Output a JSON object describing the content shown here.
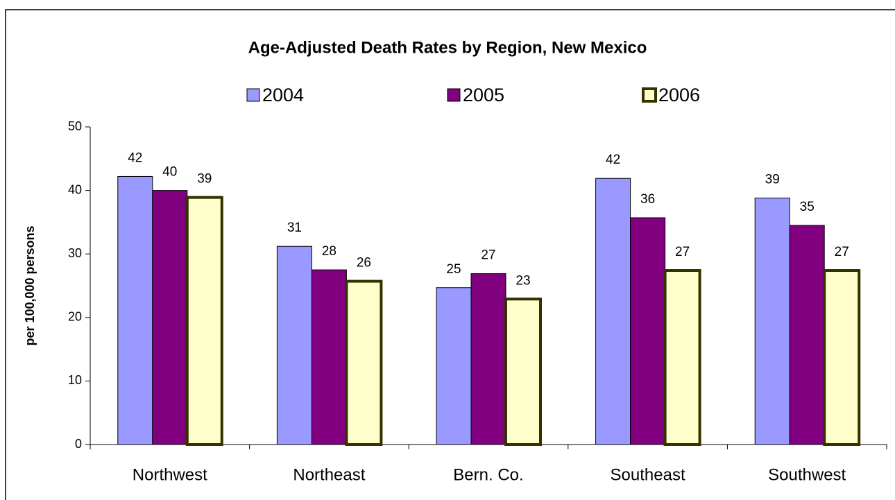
{
  "chart_data": {
    "type": "bar",
    "title": "Age-Adjusted Death Rates by Region, New Mexico",
    "y_label": "per 100,000 persons",
    "categories": [
      "Northwest",
      "Northeast",
      "Bern. Co.",
      "Southeast",
      "Southwest"
    ],
    "series": [
      {
        "name": "2004",
        "color": "#9999ff",
        "values": [
          42.2,
          31.2,
          24.7,
          41.9,
          38.8
        ],
        "value_labels": [
          "42",
          "31",
          "25",
          "42",
          "39"
        ]
      },
      {
        "name": "2005",
        "color": "#800080",
        "values": [
          40.0,
          27.5,
          26.9,
          35.7,
          34.5
        ],
        "value_labels": [
          "40",
          "28",
          "27",
          "36",
          "35"
        ]
      },
      {
        "name": "2006",
        "color": "#ffffcc",
        "values": [
          38.9,
          25.7,
          22.9,
          27.4,
          27.4
        ],
        "value_labels": [
          "39",
          "26",
          "23",
          "27",
          "27"
        ]
      }
    ],
    "ylim": [
      0,
      50
    ],
    "yticks": [
      0,
      10,
      20,
      30,
      40,
      50
    ],
    "grid": false,
    "legend": "top"
  }
}
